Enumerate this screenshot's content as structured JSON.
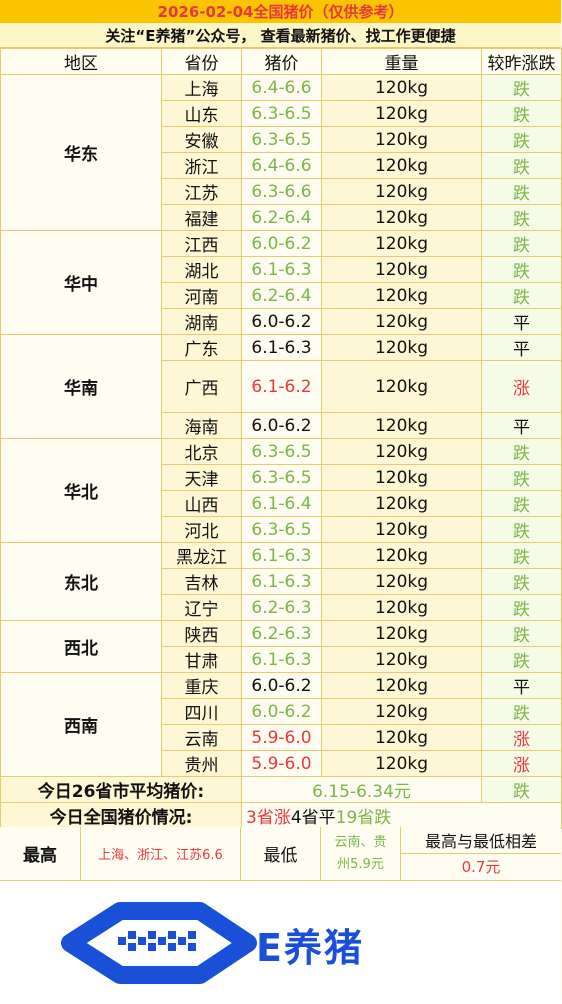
{
  "title": "2026-02-04全国猪价（仅供参考）",
  "notice": "关注“E养猪”公众号， 查看最新猪价、找工作更便捷",
  "headers": {
    "region": "地区",
    "province": "省份",
    "price": "猪价",
    "weight": "重量",
    "trend": "较昨涨跌"
  },
  "colors": {
    "fall": "#7ab648",
    "rise": "#e8383d",
    "flat": "#111111",
    "title_bg": "#fbc400",
    "brand": "#1a4fd8"
  },
  "groups": [
    {
      "region": "华东",
      "rows": [
        {
          "province": "上海",
          "price": "6.4-6.6",
          "weight": "120kg",
          "trend": "跌"
        },
        {
          "province": "山东",
          "price": "6.3-6.5",
          "weight": "120kg",
          "trend": "跌"
        },
        {
          "province": "安徽",
          "price": "6.3-6.5",
          "weight": "120kg",
          "trend": "跌"
        },
        {
          "province": "浙江",
          "price": "6.4-6.6",
          "weight": "120kg",
          "trend": "跌"
        },
        {
          "province": "江苏",
          "price": "6.3-6.6",
          "weight": "120kg",
          "trend": "跌"
        },
        {
          "province": "福建",
          "price": "6.2-6.4",
          "weight": "120kg",
          "trend": "跌"
        }
      ]
    },
    {
      "region": "华中",
      "rows": [
        {
          "province": "江西",
          "price": "6.0-6.2",
          "weight": "120kg",
          "trend": "跌"
        },
        {
          "province": "湖北",
          "price": "6.1-6.3",
          "weight": "120kg",
          "trend": "跌"
        },
        {
          "province": "河南",
          "price": "6.2-6.4",
          "weight": "120kg",
          "trend": "跌"
        },
        {
          "province": "湖南",
          "price": "6.0-6.2",
          "weight": "120kg",
          "trend": "平"
        }
      ]
    },
    {
      "region": "华南",
      "rows": [
        {
          "province": "广东",
          "price": "6.1-6.3",
          "weight": "120kg",
          "trend": "平"
        },
        {
          "province": "广西",
          "price": "6.1-6.2",
          "weight": "120kg",
          "trend": "涨",
          "tall": true
        },
        {
          "province": "海南",
          "price": "6.0-6.2",
          "weight": "120kg",
          "trend": "平"
        }
      ]
    },
    {
      "region": "华北",
      "rows": [
        {
          "province": "北京",
          "price": "6.3-6.5",
          "weight": "120kg",
          "trend": "跌"
        },
        {
          "province": "天津",
          "price": "6.3-6.5",
          "weight": "120kg",
          "trend": "跌"
        },
        {
          "province": "山西",
          "price": "6.1-6.4",
          "weight": "120kg",
          "trend": "跌"
        },
        {
          "province": "河北",
          "price": "6.3-6.5",
          "weight": "120kg",
          "trend": "跌"
        }
      ]
    },
    {
      "region": "东北",
      "rows": [
        {
          "province": "黑龙江",
          "price": "6.1-6.3",
          "weight": "120kg",
          "trend": "跌"
        },
        {
          "province": "吉林",
          "price": "6.1-6.3",
          "weight": "120kg",
          "trend": "跌"
        },
        {
          "province": "辽宁",
          "price": "6.2-6.3",
          "weight": "120kg",
          "trend": "跌"
        }
      ]
    },
    {
      "region": "西北",
      "rows": [
        {
          "province": "陕西",
          "price": "6.2-6.3",
          "weight": "120kg",
          "trend": "跌"
        },
        {
          "province": "甘肃",
          "price": "6.1-6.3",
          "weight": "120kg",
          "trend": "跌"
        }
      ]
    },
    {
      "region": "西南",
      "rows": [
        {
          "province": "重庆",
          "price": "6.0-6.2",
          "weight": "120kg",
          "trend": "平"
        },
        {
          "province": "四川",
          "price": "6.0-6.2",
          "weight": "120kg",
          "trend": "跌"
        },
        {
          "province": "云南",
          "price": "5.9-6.0",
          "weight": "120kg",
          "trend": "涨"
        },
        {
          "province": "贵州",
          "price": "5.9-6.0",
          "weight": "120kg",
          "trend": "涨"
        }
      ]
    }
  ],
  "average": {
    "label": "今日26省市平均猪价:",
    "value": "6.15-6.34元",
    "trend": "跌"
  },
  "national": {
    "label": "今日全国猪价情况:",
    "rise_part": "3省涨",
    "flat_part": "4省平",
    "fall_part": "19省跌"
  },
  "footer": {
    "highest_label": "最高",
    "highest_value": "上海、浙江、江苏6.6",
    "lowest_label": "最低",
    "lowest_value_line1": "云南、贵",
    "lowest_value_line2": "州5.9元",
    "diff_label": "最高与最低相差",
    "diff_value": "0.7元"
  },
  "logo": {
    "text": "E养猪",
    "icon": "e-pig-logo-icon"
  }
}
